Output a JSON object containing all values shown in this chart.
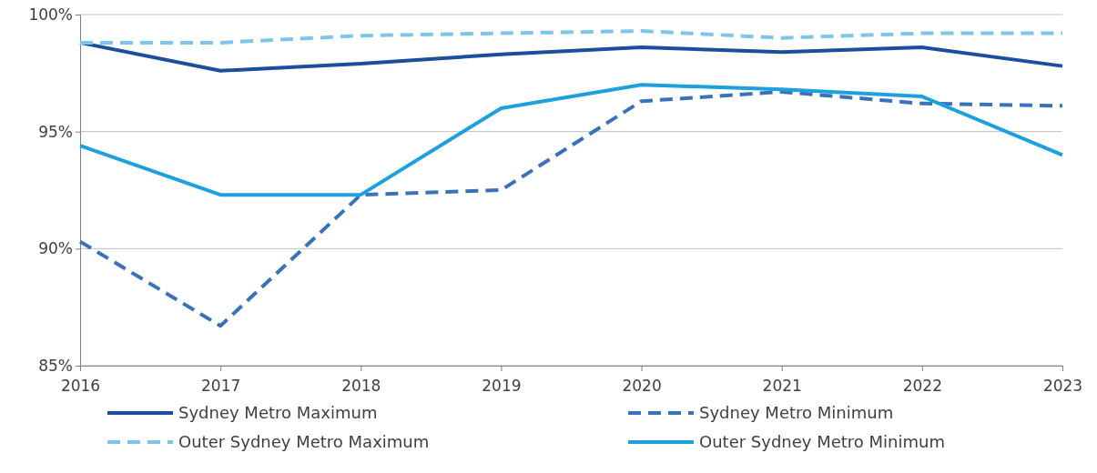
{
  "chart_data": {
    "type": "line",
    "x": [
      2016,
      2017,
      2018,
      2019,
      2020,
      2021,
      2022,
      2023
    ],
    "xlim": [
      2016,
      2023
    ],
    "xticks": [
      2016,
      2017,
      2018,
      2019,
      2020,
      2021,
      2022,
      2023
    ],
    "ylim": [
      85,
      100
    ],
    "yticks": [
      {
        "value": 85,
        "label": "85%"
      },
      {
        "value": 90,
        "label": "90%"
      },
      {
        "value": 95,
        "label": "95%"
      },
      {
        "value": 100,
        "label": "100%"
      }
    ],
    "grid": "y",
    "legend": "bottom",
    "marker": "none",
    "series": [
      {
        "name": "Sydney Metro Maximum",
        "color": "#1b4f9c",
        "line_style": "solid",
        "values": [
          98.8,
          97.6,
          97.9,
          98.3,
          98.6,
          98.4,
          98.6,
          97.8
        ]
      },
      {
        "name": "Sydney Metro Minimum",
        "color": "#3a72b8",
        "line_style": "dashed",
        "values": [
          90.3,
          86.7,
          92.3,
          92.5,
          96.3,
          96.7,
          96.2,
          96.1
        ]
      },
      {
        "name": "Outer Sydney Metro Maximum",
        "color": "#7fc4ea",
        "line_style": "dashed",
        "values": [
          98.8,
          98.8,
          99.1,
          99.2,
          99.3,
          99.0,
          99.2,
          99.2
        ]
      },
      {
        "name": "Outer Sydney Metro Minimum",
        "color": "#1ea0dc",
        "line_style": "solid",
        "values": [
          94.4,
          92.3,
          92.3,
          96.0,
          97.0,
          96.8,
          96.5,
          94.0
        ]
      }
    ]
  }
}
